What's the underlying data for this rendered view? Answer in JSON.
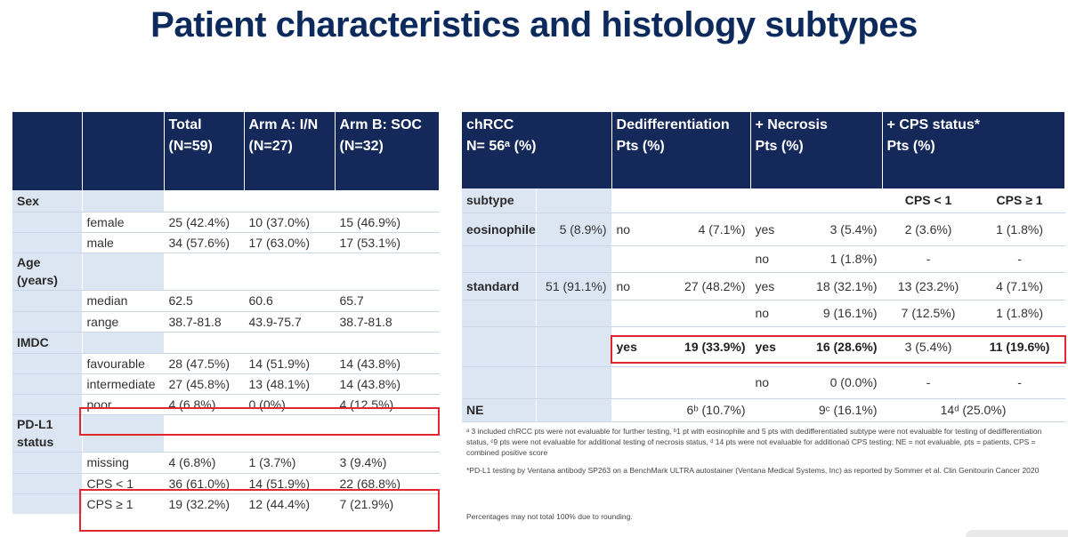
{
  "title": "Patient characteristics and histology subtypes",
  "colors": {
    "header_bg": "#14285a",
    "title": "#0d2a5c",
    "label_bg": "#dce6f2",
    "highlight": "#e0282e"
  },
  "left_table": {
    "headers": {
      "total": [
        "Total",
        "(N=59)"
      ],
      "arm_a": [
        "Arm A: I/N",
        "(N=27)"
      ],
      "arm_b": [
        "Arm B: SOC",
        "(N=32)"
      ]
    },
    "rows": [
      {
        "section": "Sex"
      },
      {
        "label": "female",
        "total": "25 (42.4%)",
        "arm_a": "10 (37.0%)",
        "arm_b": "15 (46.9%)"
      },
      {
        "label": "male",
        "total": "34 (57.6%)",
        "arm_a": "17 (63.0%)",
        "arm_b": "17 (53.1%)"
      },
      {
        "section": "Age (years)"
      },
      {
        "label": "median",
        "total": "62.5",
        "arm_a": "60.6",
        "arm_b": "65.7"
      },
      {
        "label": "range",
        "total": "38.7-81.8",
        "arm_a": "43.9-75.7",
        "arm_b": "38.7-81.8"
      },
      {
        "section": "IMDC"
      },
      {
        "label": "favourable",
        "total": "28 (47.5%)",
        "arm_a": "14 (51.9%)",
        "arm_b": "14 (43.8%)"
      },
      {
        "label": "intermediate",
        "total": "27 (45.8%)",
        "arm_a": "13 (48.1%)",
        "arm_b": "14 (43.8%)"
      },
      {
        "label": "poor",
        "total": "4 (6.8%)",
        "arm_a": "0 (0%)",
        "arm_b": "4 (12.5%)"
      },
      {
        "section": "PD-L1 status"
      },
      {
        "label": "missing",
        "total": "4 (6.8%)",
        "arm_a": "1 (3.7%)",
        "arm_b": "3 (9.4%)"
      },
      {
        "label": "CPS < 1",
        "total": "36 (61.0%)",
        "arm_a": "14 (51.9%)",
        "arm_b": "22 (68.8%)"
      },
      {
        "label": "CPS ≥ 1",
        "total": "19 (32.2%)",
        "arm_a": "12 (44.4%)",
        "arm_b": "7 (21.9%)"
      }
    ]
  },
  "right_table": {
    "headers": {
      "chrcc": [
        "chRCC",
        "N= 56ᵃ (%)"
      ],
      "dediff": [
        "Dedifferentiation",
        "Pts (%)"
      ],
      "necrosis": [
        "+ Necrosis",
        "Pts (%)"
      ],
      "cps": [
        "+ CPS status*",
        "Pts (%)"
      ]
    },
    "subtype_label": "subtype",
    "cps_lt1": "CPS < 1",
    "cps_ge1": "CPS ≥ 1",
    "rows": {
      "eosinophile": {
        "label": "eosinophile",
        "n": "5 (8.9%)",
        "dediff": "no",
        "dediff_n": "4 (7.1%)"
      },
      "eos_yes": {
        "nec": "yes",
        "nec_n": "3 (5.4%)",
        "cps_lt1": "2 (3.6%)",
        "cps_ge1": "1 (1.8%)"
      },
      "eos_no": {
        "nec": "no",
        "nec_n": "1 (1.8%)",
        "cps_lt1": "-",
        "cps_ge1": "-"
      },
      "standard": {
        "label": "standard",
        "n": "51 (91.1%)",
        "dediff": "no",
        "dediff_n": "27 (48.2%)"
      },
      "std_yes": {
        "nec": "yes",
        "nec_n": "18 (32.1%)",
        "cps_lt1": "13 (23.2%)",
        "cps_ge1": "4 (7.1%)"
      },
      "std_no": {
        "nec": "no",
        "nec_n": "9 (16.1%)",
        "cps_lt1": "7 (12.5%)",
        "cps_ge1": "1 (1.8%)"
      },
      "dediff_yes": {
        "dediff": "yes",
        "dediff_n": "19 (33.9%)",
        "nec": "yes",
        "nec_n": "16 (28.6%)",
        "cps_lt1": "3 (5.4%)",
        "cps_ge1": "11 (19.6%)"
      },
      "dediff_yes_no": {
        "nec": "no",
        "nec_n": "0 (0.0%)",
        "cps_lt1": "-",
        "cps_ge1": "-"
      },
      "ne": {
        "label": "NE",
        "dediff_n": "6ᵇ (10.7%)",
        "nec_n": "9ᶜ (16.1%)",
        "cps_n": "14ᵈ (25.0%)"
      }
    },
    "footnotes": [
      "ᵃ 3 included chRCC pts were not evaluable for further testing, ᵇ1 pt with eosinophile and 5 pts with dedifferentiated subtype were not evaluable for testing of dedifferentiation status, ᶜ9 pts were not evaluable for additional testing of necrosis status, ᵈ 14 pts were not evaluable for additionaö CPS testing; NE = not evaluable, pts = patients, CPS = combined positive score",
      "*PD-L1 testing by Ventana antibody SP263 on a BenchMark ULTRA autostainer (Ventana Medical Systems, Inc) as reported by Sommer et al. Clin Genitourin Cancer 2020",
      "Percentages may not total 100% due to rounding."
    ]
  }
}
